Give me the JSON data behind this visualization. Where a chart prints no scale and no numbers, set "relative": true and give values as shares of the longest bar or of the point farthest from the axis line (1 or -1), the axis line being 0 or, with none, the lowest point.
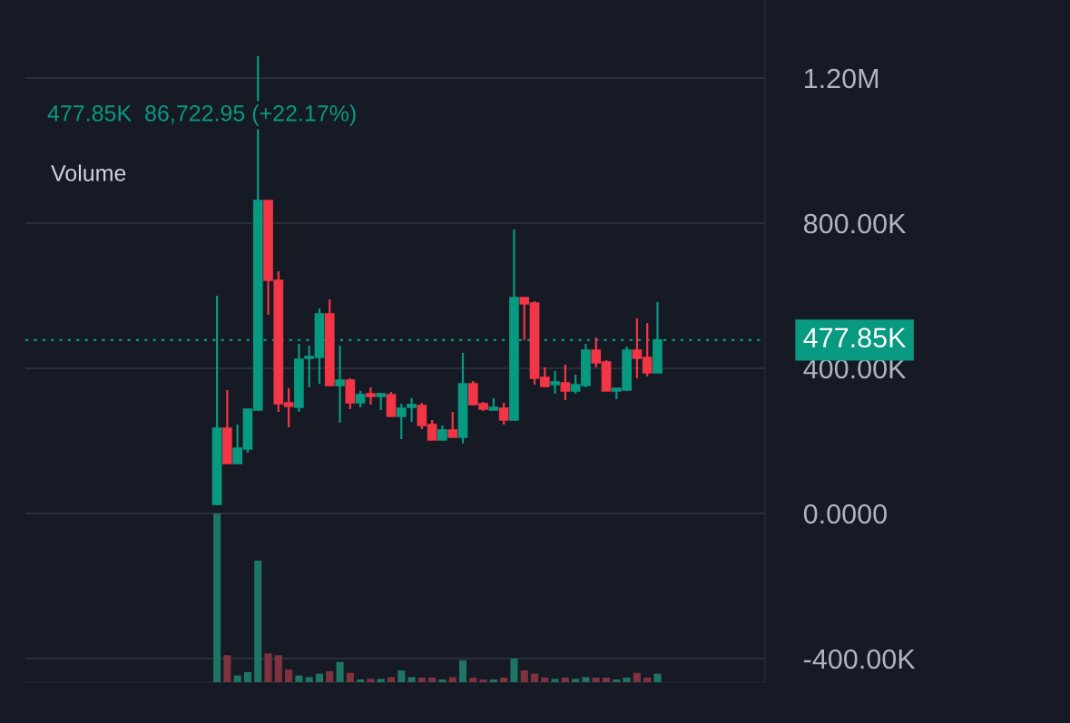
{
  "chart_data": [
    {
      "type": "candlestick",
      "categories": [
        null,
        null,
        null,
        null,
        null,
        null,
        null,
        null,
        null,
        null,
        null,
        null,
        null,
        null,
        null,
        null,
        null,
        null,
        null,
        null,
        null,
        null,
        null,
        null,
        null,
        null,
        null,
        null,
        null,
        null,
        null,
        null,
        null,
        null,
        null,
        null,
        null,
        null,
        null,
        null,
        null,
        null,
        null,
        null
      ],
      "ohlc": [
        [
          25000,
          600000,
          22500,
          235000
        ],
        [
          235000,
          340000,
          137500,
          137500
        ],
        [
          137500,
          245000,
          135000,
          180000
        ],
        [
          177500,
          287500,
          167500,
          287500
        ],
        [
          285000,
          1260000,
          285000,
          862500
        ],
        [
          862500,
          862500,
          547500,
          642500
        ],
        [
          642500,
          667500,
          280000,
          302500
        ],
        [
          305000,
          345000,
          237500,
          295000
        ],
        [
          292500,
          467500,
          280000,
          425000
        ],
        [
          427500,
          462500,
          347500,
          432500
        ],
        [
          430000,
          565000,
          357500,
          550000
        ],
        [
          550000,
          590000,
          352500,
          352500
        ],
        [
          352500,
          462500,
          250000,
          367500
        ],
        [
          367500,
          372500,
          287500,
          305000
        ],
        [
          305000,
          337500,
          292500,
          327500
        ],
        [
          330000,
          347500,
          300000,
          322500
        ],
        [
          322500,
          332500,
          285000,
          330000
        ],
        [
          327500,
          335000,
          267500,
          267500
        ],
        [
          267500,
          302500,
          205000,
          290000
        ],
        [
          292500,
          317500,
          252500,
          300000
        ],
        [
          297500,
          305000,
          232500,
          242500
        ],
        [
          245000,
          257500,
          202500,
          202500
        ],
        [
          202500,
          242500,
          202500,
          230000
        ],
        [
          230000,
          280000,
          210000,
          210000
        ],
        [
          210000,
          442500,
          192500,
          357500
        ],
        [
          357500,
          365000,
          297500,
          300000
        ],
        [
          302500,
          307500,
          282500,
          287500
        ],
        [
          285000,
          317500,
          285000,
          292500
        ],
        [
          290000,
          305000,
          245000,
          257500
        ],
        [
          257500,
          782500,
          255000,
          595000
        ],
        [
          595000,
          595000,
          477500,
          577500
        ],
        [
          580000,
          585000,
          355000,
          372500
        ],
        [
          375000,
          402500,
          347500,
          350000
        ],
        [
          355000,
          392500,
          330000,
          362500
        ],
        [
          360000,
          410000,
          312500,
          337500
        ],
        [
          337500,
          382500,
          330000,
          355000
        ],
        [
          352500,
          467500,
          347500,
          450000
        ],
        [
          450000,
          485000,
          402500,
          415000
        ],
        [
          417500,
          422500,
          337500,
          337500
        ],
        [
          337500,
          345000,
          315000,
          345000
        ],
        [
          340000,
          460000,
          337500,
          450000
        ],
        [
          450000,
          537500,
          372500,
          427500
        ],
        [
          430000,
          525000,
          377500,
          387500
        ],
        [
          387500,
          582500,
          387500,
          477850
        ]
      ],
      "colors": [
        "#089981",
        "#f23645",
        "#089981",
        "#089981",
        "#089981",
        "#f23645",
        "#f23645",
        "#f23645",
        "#089981",
        "#089981",
        "#089981",
        "#f23645",
        "#089981",
        "#f23645",
        "#089981",
        "#f23645",
        "#089981",
        "#f23645",
        "#089981",
        "#089981",
        "#f23645",
        "#f23645",
        "#089981",
        "#f23645",
        "#089981",
        "#f23645",
        "#f23645",
        "#089981",
        "#f23645",
        "#089981",
        "#f23645",
        "#f23645",
        "#f23645",
        "#089981",
        "#f23645",
        "#089981",
        "#089981",
        "#f23645",
        "#f23645",
        "#089981",
        "#089981",
        "#f23645",
        "#f23645",
        "#089981"
      ],
      "ylim": [
        -465000,
        1415000
      ],
      "yticks": [
        {
          "value": 1200000,
          "label": "1.20M"
        },
        {
          "value": 800000,
          "label": "800.00K"
        },
        {
          "value": 400000,
          "label": "400.00K"
        },
        {
          "value": 0,
          "label": "0.0000"
        },
        {
          "value": -400000,
          "label": "-400.00K"
        }
      ],
      "grid": "y",
      "ref_lines": [
        {
          "axis": "y",
          "value": 477850,
          "label": "477.85K",
          "color": "#089981",
          "line_style": "dotted"
        }
      ],
      "annotations": [
        "477.85K  86,722.95 (+22.17%)",
        "Volume"
      ]
    },
    {
      "type": "bar",
      "relative": true,
      "categories": [
        null,
        null,
        null,
        null,
        null,
        null,
        null,
        null,
        null,
        null,
        null,
        null,
        null,
        null,
        null,
        null,
        null,
        null,
        null,
        null,
        null,
        null,
        null,
        null,
        null,
        null,
        null,
        null,
        null,
        null,
        null,
        null,
        null,
        null,
        null,
        null,
        null,
        null,
        null,
        null,
        null,
        null,
        null,
        null
      ],
      "values": [
        1.0,
        0.16,
        0.04,
        0.06,
        0.72,
        0.17,
        0.16,
        0.075,
        0.04,
        0.03,
        0.05,
        0.065,
        0.12,
        0.055,
        0.016,
        0.02,
        0.02,
        0.03,
        0.07,
        0.03,
        0.027,
        0.027,
        0.016,
        0.03,
        0.13,
        0.027,
        0.016,
        0.016,
        0.027,
        0.14,
        0.07,
        0.05,
        0.027,
        0.02,
        0.027,
        0.02,
        0.03,
        0.027,
        0.027,
        0.016,
        0.027,
        0.055,
        0.027,
        0.05
      ],
      "colors": [
        "#1f7564",
        "#7f3340",
        "#1f7564",
        "#1f7564",
        "#1f7564",
        "#7f3340",
        "#7f3340",
        "#7f3340",
        "#1f7564",
        "#1f7564",
        "#1f7564",
        "#7f3340",
        "#1f7564",
        "#7f3340",
        "#1f7564",
        "#7f3340",
        "#1f7564",
        "#7f3340",
        "#1f7564",
        "#1f7564",
        "#7f3340",
        "#7f3340",
        "#1f7564",
        "#7f3340",
        "#1f7564",
        "#7f3340",
        "#7f3340",
        "#1f7564",
        "#7f3340",
        "#1f7564",
        "#7f3340",
        "#7f3340",
        "#7f3340",
        "#1f7564",
        "#7f3340",
        "#1f7564",
        "#1f7564",
        "#7f3340",
        "#7f3340",
        "#1f7564",
        "#1f7564",
        "#7f3340",
        "#7f3340",
        "#1f7564"
      ]
    }
  ]
}
